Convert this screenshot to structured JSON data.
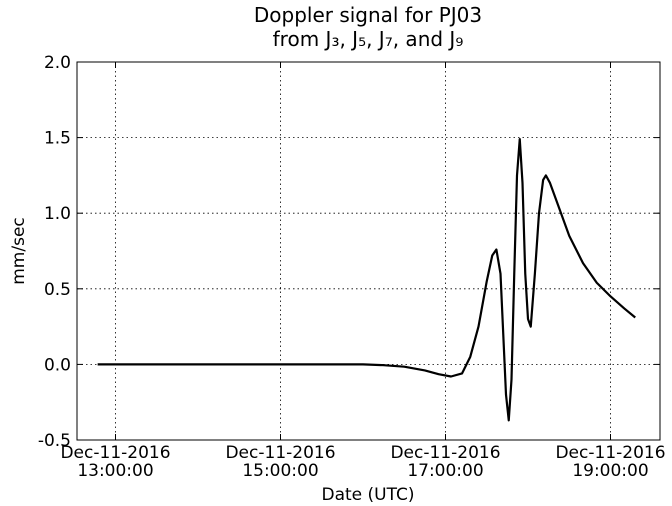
{
  "chart_data": {
    "type": "line",
    "title": [
      "Doppler signal for PJ03",
      "from J₃, J₅, J₇, and J₉"
    ],
    "x_label": "Date (UTC)",
    "y_label": "mm/sec",
    "x": [
      "2016-12-11T12:47:00",
      "2016-12-11T13:30:00",
      "2016-12-11T14:00:00",
      "2016-12-11T14:30:00",
      "2016-12-11T15:00:00",
      "2016-12-11T15:30:00",
      "2016-12-11T16:00:00",
      "2016-12-11T16:15:00",
      "2016-12-11T16:30:00",
      "2016-12-11T16:45:00",
      "2016-12-11T16:55:00",
      "2016-12-11T17:04:00",
      "2016-12-11T17:12:00",
      "2016-12-11T17:18:00",
      "2016-12-11T17:24:00",
      "2016-12-11T17:30:00",
      "2016-12-11T17:34:00",
      "2016-12-11T17:37:00",
      "2016-12-11T17:40:00",
      "2016-12-11T17:42:00",
      "2016-12-11T17:44:00",
      "2016-12-11T17:46:00",
      "2016-12-11T17:48:00",
      "2016-12-11T17:50:00",
      "2016-12-11T17:52:00",
      "2016-12-11T17:54:00",
      "2016-12-11T17:56:00",
      "2016-12-11T17:58:00",
      "2016-12-11T18:00:00",
      "2016-12-11T18:02:00",
      "2016-12-11T18:05:00",
      "2016-12-11T18:08:00",
      "2016-12-11T18:11:00",
      "2016-12-11T18:13:00",
      "2016-12-11T18:16:00",
      "2016-12-11T18:22:00",
      "2016-12-11T18:30:00",
      "2016-12-11T18:40:00",
      "2016-12-11T18:50:00",
      "2016-12-11T19:00:00",
      "2016-12-11T19:10:00",
      "2016-12-11T19:18:00"
    ],
    "series": [
      {
        "name": "Doppler",
        "color": "#000000",
        "values": [
          0,
          0,
          0,
          0,
          0,
          0,
          0,
          -0.005,
          -0.015,
          -0.04,
          -0.065,
          -0.08,
          -0.06,
          0.05,
          0.25,
          0.55,
          0.72,
          0.76,
          0.6,
          0.2,
          -0.2,
          -0.37,
          -0.1,
          0.6,
          1.25,
          1.49,
          1.2,
          0.6,
          0.3,
          0.25,
          0.6,
          1.0,
          1.22,
          1.25,
          1.2,
          1.05,
          0.85,
          0.67,
          0.54,
          0.45,
          0.37,
          0.31
        ]
      }
    ],
    "xlim": [
      "2016-12-11T12:32:00",
      "2016-12-11T19:36:00"
    ],
    "xticks": [
      {
        "value": "2016-12-11T13:00:00",
        "label": "Dec-11-2016\n13:00:00"
      },
      {
        "value": "2016-12-11T15:00:00",
        "label": "Dec-11-2016\n15:00:00"
      },
      {
        "value": "2016-12-11T17:00:00",
        "label": "Dec-11-2016\n17:00:00"
      },
      {
        "value": "2016-12-11T19:00:00",
        "label": "Dec-11-2016\n19:00:00"
      }
    ],
    "ylim": [
      -0.5,
      2.0
    ],
    "yticks": [
      {
        "value": -0.5,
        "label": "-0.5"
      },
      {
        "value": 0,
        "label": "0.0"
      },
      {
        "value": 0.5,
        "label": "0.5"
      },
      {
        "value": 1,
        "label": "1.0"
      },
      {
        "value": 1.5,
        "label": "1.5"
      },
      {
        "value": 2,
        "label": "2.0"
      }
    ],
    "grid": true
  }
}
